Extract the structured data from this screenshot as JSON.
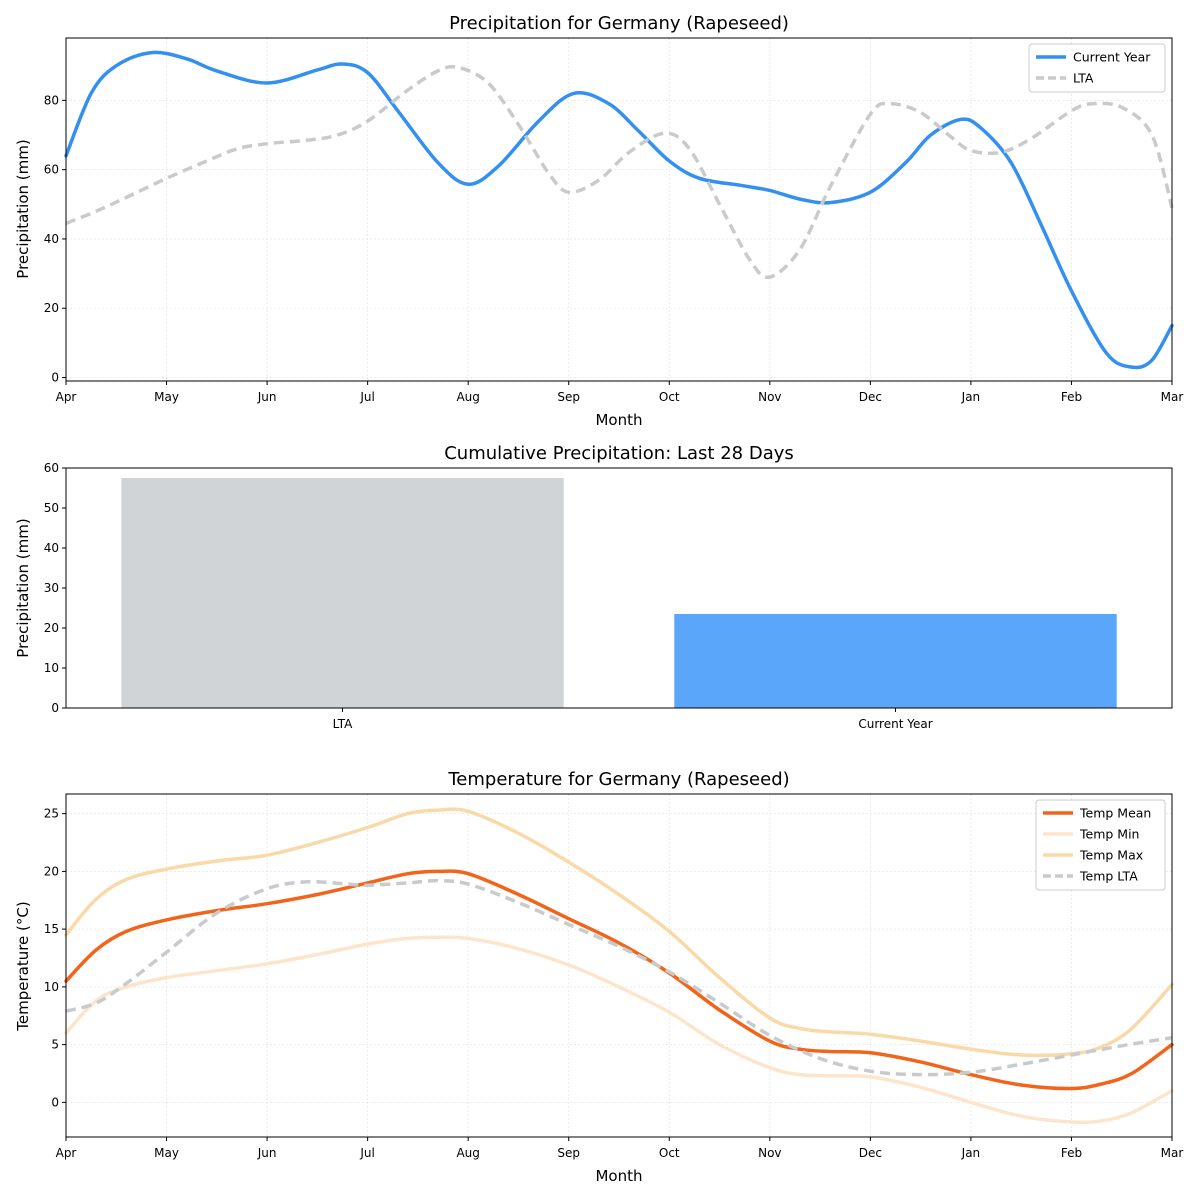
{
  "chart_data": [
    {
      "type": "line",
      "title": "Precipitation for Germany (Rapeseed)",
      "xlabel": "Month",
      "ylabel": "Precipitation (mm)",
      "categories": [
        "Apr",
        "May",
        "Jun",
        "Jul",
        "Aug",
        "Sep",
        "Oct",
        "Nov",
        "Dec",
        "Jan",
        "Feb",
        "Mar"
      ],
      "ylim": [
        -1,
        98
      ],
      "yticks": [
        0,
        20,
        40,
        60,
        80
      ],
      "grid": true,
      "legend": "top-right",
      "series": [
        {
          "name": "Current Year",
          "color": "#3390f0",
          "style": "solid",
          "x": [
            0,
            0.25,
            0.5,
            0.85,
            1.2,
            1.5,
            2.0,
            2.5,
            2.75,
            3.0,
            3.3,
            3.7,
            4.0,
            4.3,
            4.7,
            5.05,
            5.4,
            5.7,
            6.0,
            6.3,
            6.7,
            7.0,
            7.3,
            7.6,
            8.0,
            8.35,
            8.6,
            8.9,
            9.1,
            9.4,
            9.7,
            10.0,
            10.35,
            10.6,
            10.8,
            11.0
          ],
          "y": [
            64,
            82,
            90,
            93.8,
            92,
            88.5,
            85,
            88.8,
            90.5,
            88,
            77,
            62,
            55.8,
            61,
            74,
            82,
            79,
            71,
            62.5,
            57.5,
            55.5,
            54,
            51.5,
            50.5,
            53.5,
            62,
            70,
            74.5,
            72,
            62,
            44,
            25,
            7,
            3,
            5,
            15
          ]
        },
        {
          "name": "LTA",
          "color": "#c8cacc",
          "style": "dashed",
          "x": [
            0,
            0.3,
            0.6,
            1.0,
            1.4,
            1.7,
            2.0,
            2.4,
            2.7,
            3.0,
            3.4,
            3.7,
            3.9,
            4.2,
            4.5,
            4.8,
            5.0,
            5.3,
            5.6,
            5.95,
            6.2,
            6.5,
            6.8,
            7.0,
            7.3,
            7.6,
            8.0,
            8.2,
            8.5,
            8.8,
            9.0,
            9.3,
            9.6,
            10.0,
            10.2,
            10.5,
            10.8,
            11.0
          ],
          "y": [
            44.5,
            48,
            52,
            57.5,
            62.5,
            66,
            67.5,
            68.5,
            70,
            74,
            83,
            88.5,
            89.5,
            85,
            73,
            59,
            53.5,
            57,
            65,
            70.5,
            66,
            50,
            34,
            29,
            37,
            55,
            76,
            79,
            76.5,
            69.5,
            65.5,
            65,
            69,
            77,
            79,
            78,
            70,
            49
          ]
        }
      ]
    },
    {
      "type": "bar",
      "title": "Cumulative Precipitation: Last 28 Days",
      "xlabel": "",
      "ylabel": "Precipitation (mm)",
      "categories": [
        "LTA",
        "Current Year"
      ],
      "values": [
        57.5,
        23.5
      ],
      "colors": [
        "#d1d4d7",
        "#5aa6fa"
      ],
      "ylim": [
        0,
        60
      ],
      "yticks": [
        0,
        10,
        20,
        30,
        40,
        50,
        60
      ],
      "grid": false
    },
    {
      "type": "line",
      "title": "Temperature for Germany (Rapeseed)",
      "xlabel": "Month",
      "ylabel": "Temperature (°C)",
      "categories": [
        "Apr",
        "May",
        "Jun",
        "Jul",
        "Aug",
        "Sep",
        "Oct",
        "Nov",
        "Dec",
        "Jan",
        "Feb",
        "Mar"
      ],
      "ylim": [
        -3,
        26.7
      ],
      "yticks": [
        0,
        5,
        10,
        15,
        20,
        25
      ],
      "grid": true,
      "legend": "top-right",
      "series": [
        {
          "name": "Temp Mean",
          "color": "#f26419",
          "style": "solid",
          "x": [
            0,
            0.3,
            0.6,
            1.0,
            1.5,
            2.0,
            2.5,
            3.0,
            3.4,
            3.7,
            4.0,
            4.5,
            5.0,
            5.5,
            6.0,
            6.5,
            7.0,
            7.3,
            7.6,
            8.0,
            8.5,
            9.0,
            9.5,
            10.0,
            10.3,
            10.6,
            11.0
          ],
          "y": [
            10.5,
            13.2,
            14.8,
            15.8,
            16.6,
            17.2,
            18.0,
            19.0,
            19.8,
            20.0,
            19.8,
            18.0,
            15.9,
            13.8,
            11.2,
            8.0,
            5.3,
            4.6,
            4.4,
            4.3,
            3.5,
            2.4,
            1.5,
            1.2,
            1.6,
            2.5,
            5.0
          ]
        },
        {
          "name": "Temp Min",
          "color": "#fde5cc",
          "style": "solid",
          "x": [
            0,
            0.3,
            0.6,
            1.0,
            1.5,
            2.0,
            2.5,
            3.0,
            3.4,
            3.7,
            4.0,
            4.5,
            5.0,
            5.5,
            6.0,
            6.5,
            7.0,
            7.3,
            7.6,
            8.0,
            8.5,
            9.0,
            9.5,
            10.0,
            10.3,
            10.6,
            11.0
          ],
          "y": [
            6.0,
            8.8,
            10.0,
            10.8,
            11.4,
            12.0,
            12.8,
            13.7,
            14.2,
            14.3,
            14.2,
            13.3,
            11.9,
            10.0,
            7.8,
            5.0,
            3.0,
            2.4,
            2.3,
            2.2,
            1.3,
            0.0,
            -1.2,
            -1.7,
            -1.6,
            -0.9,
            1.0
          ]
        },
        {
          "name": "Temp Max",
          "color": "#fad9a8",
          "style": "solid",
          "x": [
            0,
            0.3,
            0.6,
            1.0,
            1.5,
            2.0,
            2.5,
            3.0,
            3.4,
            3.7,
            4.0,
            4.5,
            5.0,
            5.5,
            6.0,
            6.5,
            7.0,
            7.3,
            7.6,
            8.0,
            8.5,
            9.0,
            9.5,
            10.0,
            10.3,
            10.6,
            11.0
          ],
          "y": [
            14.5,
            17.6,
            19.3,
            20.2,
            20.9,
            21.4,
            22.5,
            23.8,
            25.0,
            25.3,
            25.2,
            23.3,
            20.8,
            18.0,
            14.8,
            10.8,
            7.3,
            6.4,
            6.1,
            5.9,
            5.3,
            4.6,
            4.1,
            4.2,
            4.8,
            6.4,
            10.2
          ]
        },
        {
          "name": "Temp LTA",
          "color": "#c8cacc",
          "style": "dashed",
          "x": [
            0,
            0.3,
            0.6,
            1.0,
            1.5,
            2.0,
            2.4,
            2.8,
            3.0,
            3.4,
            3.7,
            4.0,
            4.5,
            5.0,
            5.5,
            6.0,
            6.5,
            7.0,
            7.5,
            8.0,
            8.5,
            9.0,
            9.5,
            10.0,
            10.5,
            11.0
          ],
          "y": [
            7.9,
            8.6,
            10.3,
            13.0,
            16.4,
            18.5,
            19.1,
            18.9,
            18.8,
            19.0,
            19.2,
            18.9,
            17.3,
            15.4,
            13.5,
            11.3,
            8.6,
            5.8,
            3.8,
            2.7,
            2.4,
            2.6,
            3.3,
            4.1,
            4.9,
            5.6
          ]
        }
      ]
    }
  ]
}
